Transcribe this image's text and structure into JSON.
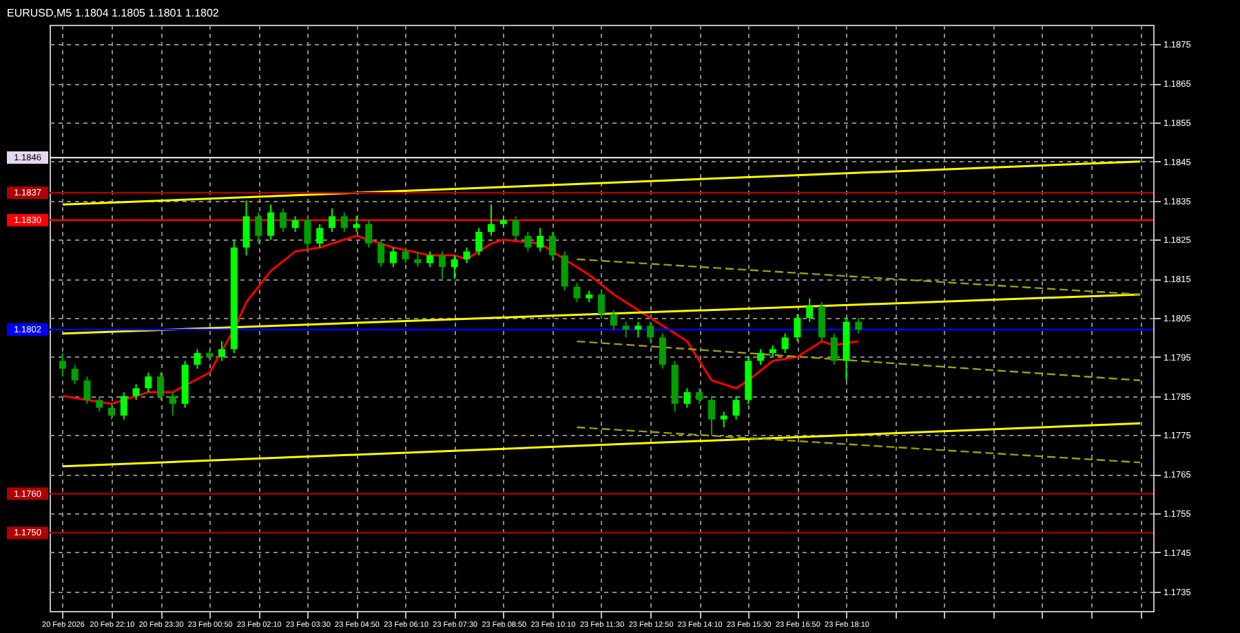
{
  "chart_data": {
    "type": "candlestick",
    "title": "EURUSD,M5  1.1804 1.1805 1.1801 1.1802",
    "grid": true,
    "ylim": [
      1.173,
      1.188
    ],
    "yticks": [
      1.1735,
      1.1745,
      1.1755,
      1.1765,
      1.1775,
      1.1785,
      1.1795,
      1.1805,
      1.1815,
      1.1825,
      1.1835,
      1.1845,
      1.1855,
      1.1865,
      1.1875
    ],
    "categories": [
      "20 Feb 2026",
      null,
      null,
      null,
      "20 Feb 22:10",
      null,
      null,
      null,
      "20 Feb 23:30",
      null,
      null,
      null,
      "23 Feb 00:50",
      null,
      null,
      null,
      "23 Feb 02:10",
      null,
      null,
      null,
      "23 Feb 03:30",
      null,
      null,
      null,
      "23 Feb 04:50",
      null,
      null,
      null,
      "23 Feb 06:10",
      null,
      null,
      null,
      "23 Feb 07:30",
      null,
      null,
      null,
      "23 Feb 08:50",
      null,
      null,
      null,
      "23 Feb 10:10",
      null,
      null,
      null,
      "23 Feb 11:30",
      null,
      null,
      null,
      "23 Feb 12:50",
      null,
      null,
      null,
      "23 Feb 14:10",
      null,
      null,
      null,
      "23 Feb 15:30",
      null,
      null,
      null,
      "23 Feb 16:50",
      null,
      null,
      null,
      "23 Feb 18:10",
      null,
      null,
      null,
      null,
      null,
      null,
      null,
      null,
      null,
      null,
      null,
      null,
      null,
      null,
      null,
      null,
      null,
      null,
      null,
      null,
      null,
      null,
      null,
      null
    ],
    "ohlc": [
      [
        1.1794,
        1.1796,
        1.179,
        1.1792
      ],
      [
        1.1792,
        1.1793,
        1.1788,
        1.1789
      ],
      [
        1.1789,
        1.179,
        1.1783,
        1.1784
      ],
      [
        1.1784,
        1.1785,
        1.1781,
        1.1782
      ],
      [
        1.1782,
        1.1783,
        1.1779,
        1.178
      ],
      [
        1.178,
        1.1786,
        1.1779,
        1.1785
      ],
      [
        1.1785,
        1.1788,
        1.1784,
        1.1787
      ],
      [
        1.1787,
        1.1791,
        1.1786,
        1.179
      ],
      [
        1.179,
        1.1791,
        1.1784,
        1.1785
      ],
      [
        1.1785,
        1.1786,
        1.178,
        1.1783
      ],
      [
        1.1783,
        1.1794,
        1.1782,
        1.1793
      ],
      [
        1.1793,
        1.1797,
        1.1792,
        1.1796
      ],
      [
        1.1796,
        1.1797,
        1.1794,
        1.1795
      ],
      [
        1.1795,
        1.1799,
        1.1794,
        1.1797
      ],
      [
        1.1797,
        1.1825,
        1.1796,
        1.1823
      ],
      [
        1.1823,
        1.1835,
        1.1821,
        1.1831
      ],
      [
        1.1831,
        1.1832,
        1.1824,
        1.1826
      ],
      [
        1.1826,
        1.1834,
        1.1825,
        1.1832
      ],
      [
        1.1832,
        1.1833,
        1.1827,
        1.1828
      ],
      [
        1.1828,
        1.1831,
        1.1827,
        1.183
      ],
      [
        1.183,
        1.1831,
        1.1822,
        1.1824
      ],
      [
        1.1824,
        1.1829,
        1.1823,
        1.1828
      ],
      [
        1.1828,
        1.1833,
        1.1827,
        1.1831
      ],
      [
        1.1831,
        1.1832,
        1.1827,
        1.1828
      ],
      [
        1.1828,
        1.1831,
        1.1827,
        1.1829
      ],
      [
        1.1829,
        1.183,
        1.1823,
        1.1824
      ],
      [
        1.1824,
        1.1825,
        1.1818,
        1.1819
      ],
      [
        1.1819,
        1.1823,
        1.1818,
        1.1822
      ],
      [
        1.1822,
        1.1823,
        1.1819,
        1.182
      ],
      [
        1.182,
        1.1822,
        1.1818,
        1.1819
      ],
      [
        1.1819,
        1.1822,
        1.1818,
        1.1821
      ],
      [
        1.1821,
        1.1822,
        1.1815,
        1.1818
      ],
      [
        1.1818,
        1.1821,
        1.1815,
        1.182
      ],
      [
        1.182,
        1.1823,
        1.1819,
        1.1822
      ],
      [
        1.1822,
        1.1828,
        1.1821,
        1.1827
      ],
      [
        1.1827,
        1.1834,
        1.1826,
        1.1829
      ],
      [
        1.1829,
        1.1831,
        1.1828,
        1.183
      ],
      [
        1.183,
        1.1831,
        1.1825,
        1.1826
      ],
      [
        1.1826,
        1.1827,
        1.1822,
        1.1823
      ],
      [
        1.1823,
        1.1828,
        1.1822,
        1.1826
      ],
      [
        1.1826,
        1.1827,
        1.182,
        1.1821
      ],
      [
        1.1821,
        1.1822,
        1.1812,
        1.1813
      ],
      [
        1.1813,
        1.1814,
        1.1809,
        1.181
      ],
      [
        1.181,
        1.1812,
        1.1809,
        1.1811
      ],
      [
        1.1811,
        1.1812,
        1.1805,
        1.1806
      ],
      [
        1.1806,
        1.1807,
        1.1802,
        1.1803
      ],
      [
        1.1803,
        1.1804,
        1.18,
        1.1802
      ],
      [
        1.1802,
        1.1804,
        1.18,
        1.1803
      ],
      [
        1.1803,
        1.1804,
        1.1799,
        1.18
      ],
      [
        1.18,
        1.1801,
        1.1792,
        1.1793
      ],
      [
        1.1793,
        1.1794,
        1.1781,
        1.1783
      ],
      [
        1.1783,
        1.1787,
        1.1782,
        1.1786
      ],
      [
        1.1786,
        1.1787,
        1.1783,
        1.1784
      ],
      [
        1.1784,
        1.1785,
        1.1775,
        1.1779
      ],
      [
        1.1779,
        1.1781,
        1.1777,
        1.178
      ],
      [
        1.178,
        1.1785,
        1.1779,
        1.1784
      ],
      [
        1.1784,
        1.1795,
        1.1783,
        1.1794
      ],
      [
        1.1794,
        1.1797,
        1.1793,
        1.1796
      ],
      [
        1.1796,
        1.1798,
        1.1795,
        1.1797
      ],
      [
        1.1797,
        1.1801,
        1.1796,
        1.18
      ],
      [
        1.18,
        1.1806,
        1.1799,
        1.1805
      ],
      [
        1.1805,
        1.181,
        1.1804,
        1.1808
      ],
      [
        1.1808,
        1.1809,
        1.1799,
        1.18
      ],
      [
        1.18,
        1.1801,
        1.1793,
        1.1794
      ],
      [
        1.1794,
        1.1805,
        1.1789,
        1.1804
      ],
      [
        1.1804,
        1.1805,
        1.1801,
        1.1802
      ],
      null,
      null,
      null,
      null,
      null,
      null,
      null,
      null,
      null,
      null,
      null,
      null,
      null,
      null,
      null,
      null,
      null,
      null,
      null,
      null,
      null,
      null,
      null
    ],
    "colors": [
      "#00a000",
      "#00a000",
      "#00a000",
      "#00a000",
      "#00a000",
      "#00ff00",
      "#00ff00",
      "#00ff00",
      "#00a000",
      "#00a000",
      "#00ff00",
      "#00ff00",
      "#00a000",
      "#00ff00",
      "#00ff00",
      "#00ff00",
      "#00a000",
      "#00ff00",
      "#00a000",
      "#00ff00",
      "#00a000",
      "#00ff00",
      "#00ff00",
      "#00a000",
      "#00ff00",
      "#00a000",
      "#00a000",
      "#00ff00",
      "#00a000",
      "#00a000",
      "#00ff00",
      "#00a000",
      "#00ff00",
      "#00ff00",
      "#00ff00",
      "#00ff00",
      "#00ff00",
      "#00a000",
      "#00a000",
      "#00ff00",
      "#00a000",
      "#00a000",
      "#00a000",
      "#00ff00",
      "#00a000",
      "#00a000",
      "#00a000",
      "#00ff00",
      "#00a000",
      "#00a000",
      "#00a000",
      "#00ff00",
      "#00a000",
      "#00a000",
      "#00ff00",
      "#00ff00",
      "#00ff00",
      "#00ff00",
      "#00ff00",
      "#00ff00",
      "#00ff00",
      "#00ff00",
      "#00a000",
      "#00a000",
      "#00ff00",
      "#00a000",
      null,
      null,
      null,
      null,
      null,
      null,
      null,
      null,
      null,
      null,
      null,
      null,
      null,
      null,
      null,
      null,
      null,
      null,
      null,
      null,
      null,
      null,
      null
    ],
    "series": [
      {
        "type": "line",
        "color": "#ff0000",
        "values": [
          1.1785,
          null,
          null,
          null,
          1.1783,
          null,
          null,
          1.1786,
          null,
          1.1786,
          null,
          null,
          1.1791,
          null,
          1.1802,
          1.1809,
          null,
          1.1817,
          null,
          1.1822,
          null,
          1.1823,
          null,
          null,
          1.1826,
          null,
          null,
          1.1823,
          null,
          null,
          1.1821,
          null,
          1.1821,
          1.182,
          null,
          1.1824,
          1.1825,
          null,
          null,
          1.1824,
          1.1822,
          null,
          null,
          1.1816,
          null,
          1.1811,
          null,
          1.1807,
          null,
          null,
          null,
          1.1799,
          null,
          1.1789,
          null,
          1.1787,
          1.1789,
          null,
          1.1794,
          null,
          1.1795,
          null,
          1.1799,
          1.1798,
          null,
          1.1799,
          null,
          null,
          null,
          null,
          null,
          null,
          null,
          null,
          null,
          null,
          null,
          null,
          null,
          null,
          null,
          null,
          null,
          null,
          null,
          null,
          null,
          null,
          null
        ]
      },
      {
        "type": "line",
        "color": "#ffff00",
        "values": [
          1.1834,
          null,
          null,
          null,
          null,
          null,
          null,
          null,
          null,
          null,
          null,
          null,
          null,
          null,
          null,
          null,
          null,
          null,
          null,
          null,
          null,
          null,
          null,
          null,
          null,
          null,
          null,
          null,
          null,
          null,
          null,
          null,
          null,
          null,
          null,
          null,
          null,
          null,
          null,
          null,
          null,
          null,
          null,
          null,
          null,
          null,
          null,
          null,
          null,
          null,
          null,
          null,
          null,
          null,
          null,
          null,
          null,
          null,
          null,
          null,
          null,
          null,
          null,
          null,
          null,
          null,
          null,
          null,
          null,
          null,
          null,
          null,
          null,
          null,
          null,
          null,
          null,
          null,
          null,
          null,
          null,
          null,
          null,
          null,
          null,
          null,
          null,
          null,
          1.1845
        ]
      },
      {
        "type": "line",
        "color": "#ffff00",
        "values": [
          1.1801,
          null,
          null,
          null,
          null,
          null,
          null,
          null,
          null,
          null,
          null,
          null,
          null,
          null,
          null,
          null,
          null,
          null,
          null,
          null,
          null,
          null,
          null,
          null,
          null,
          null,
          null,
          null,
          null,
          null,
          null,
          null,
          null,
          null,
          null,
          null,
          null,
          null,
          null,
          null,
          null,
          null,
          null,
          null,
          null,
          null,
          null,
          null,
          null,
          null,
          null,
          null,
          null,
          null,
          null,
          null,
          null,
          null,
          null,
          null,
          null,
          null,
          null,
          null,
          null,
          null,
          null,
          null,
          null,
          null,
          null,
          null,
          null,
          null,
          null,
          null,
          null,
          null,
          null,
          null,
          null,
          null,
          null,
          null,
          null,
          null,
          null,
          null,
          1.1811
        ]
      },
      {
        "type": "line",
        "color": "#ffff00",
        "values": [
          1.1767,
          null,
          null,
          null,
          null,
          null,
          null,
          null,
          null,
          null,
          null,
          null,
          null,
          null,
          null,
          null,
          null,
          null,
          null,
          null,
          null,
          null,
          null,
          null,
          null,
          null,
          null,
          null,
          null,
          null,
          null,
          null,
          null,
          null,
          null,
          null,
          null,
          null,
          null,
          null,
          null,
          null,
          null,
          null,
          null,
          null,
          null,
          null,
          null,
          null,
          null,
          null,
          null,
          null,
          null,
          null,
          null,
          null,
          null,
          null,
          null,
          null,
          null,
          null,
          null,
          null,
          null,
          null,
          null,
          null,
          null,
          null,
          null,
          null,
          null,
          null,
          null,
          null,
          null,
          null,
          null,
          null,
          null,
          null,
          null,
          null,
          null,
          null,
          1.1778
        ]
      },
      {
        "type": "line",
        "color": "#a0a000",
        "line_style": "dashed",
        "values": [
          null,
          null,
          null,
          null,
          null,
          null,
          null,
          null,
          null,
          null,
          null,
          null,
          null,
          null,
          null,
          null,
          null,
          null,
          null,
          null,
          null,
          null,
          null,
          null,
          null,
          null,
          null,
          null,
          null,
          null,
          null,
          null,
          null,
          null,
          null,
          null,
          null,
          null,
          null,
          null,
          null,
          null,
          1.182,
          null,
          null,
          null,
          null,
          null,
          null,
          null,
          null,
          null,
          null,
          null,
          null,
          null,
          null,
          null,
          null,
          null,
          null,
          null,
          null,
          null,
          null,
          null,
          null,
          null,
          null,
          null,
          null,
          null,
          null,
          null,
          null,
          null,
          null,
          null,
          null,
          null,
          null,
          null,
          null,
          null,
          null,
          null,
          null,
          null,
          1.1811
        ]
      },
      {
        "type": "line",
        "color": "#a0a000",
        "line_style": "dashed",
        "values": [
          null,
          null,
          null,
          null,
          null,
          null,
          null,
          null,
          null,
          null,
          null,
          null,
          null,
          null,
          null,
          null,
          null,
          null,
          null,
          null,
          null,
          null,
          null,
          null,
          null,
          null,
          null,
          null,
          null,
          null,
          null,
          null,
          null,
          null,
          null,
          null,
          null,
          null,
          null,
          null,
          null,
          null,
          1.1799,
          null,
          null,
          null,
          null,
          null,
          null,
          null,
          null,
          null,
          null,
          null,
          null,
          null,
          null,
          null,
          null,
          null,
          null,
          null,
          null,
          null,
          null,
          null,
          null,
          null,
          null,
          null,
          null,
          null,
          null,
          null,
          null,
          null,
          null,
          null,
          null,
          null,
          null,
          null,
          null,
          null,
          null,
          null,
          null,
          null,
          1.1789
        ]
      },
      {
        "type": "line",
        "color": "#a0a000",
        "line_style": "dashed",
        "values": [
          null,
          null,
          null,
          null,
          null,
          null,
          null,
          null,
          null,
          null,
          null,
          null,
          null,
          null,
          null,
          null,
          null,
          null,
          null,
          null,
          null,
          null,
          null,
          null,
          null,
          null,
          null,
          null,
          null,
          null,
          null,
          null,
          null,
          null,
          null,
          null,
          null,
          null,
          null,
          null,
          null,
          null,
          1.1777,
          null,
          null,
          null,
          null,
          null,
          null,
          null,
          null,
          null,
          null,
          null,
          null,
          null,
          null,
          null,
          null,
          null,
          null,
          null,
          null,
          null,
          null,
          null,
          null,
          null,
          null,
          null,
          null,
          null,
          null,
          null,
          null,
          null,
          null,
          null,
          null,
          null,
          null,
          null,
          null,
          null,
          null,
          null,
          null,
          null,
          1.1768
        ]
      }
    ],
    "ref_lines": [
      {
        "axis": "y",
        "value": 1.1846,
        "label": "1.1846",
        "color": "#e6d8f0"
      },
      {
        "axis": "y",
        "value": 1.1837,
        "label": "1.1837",
        "color": "#b00000"
      },
      {
        "axis": "y",
        "value": 1.183,
        "label": "1.1830",
        "color": "#ff0000"
      },
      {
        "axis": "y",
        "value": 1.1802,
        "label": "1.1802",
        "color": "#0000ff"
      },
      {
        "axis": "y",
        "value": 1.176,
        "label": "1.1760",
        "color": "#b00000"
      },
      {
        "axis": "y",
        "value": 1.175,
        "label": "1.1750",
        "color": "#b00000"
      }
    ]
  }
}
